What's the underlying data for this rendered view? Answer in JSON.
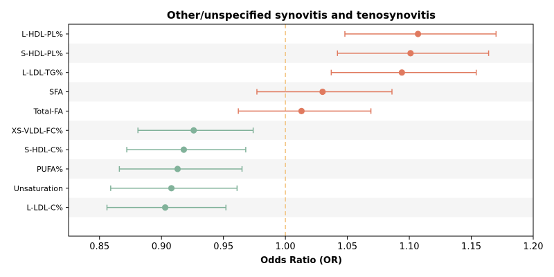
{
  "chart_data": {
    "type": "forest",
    "title": "Other/unspecified synovitis and tenosynovitis",
    "xlabel": "Odds Ratio (OR)",
    "ylabel": "",
    "xlim": [
      0.825,
      1.2
    ],
    "xticks": [
      "0.85",
      "0.90",
      "0.95",
      "1.00",
      "1.05",
      "1.10",
      "1.15",
      "1.20"
    ],
    "xtick_values": [
      0.85,
      0.9,
      0.95,
      1.0,
      1.05,
      1.1,
      1.15,
      1.2
    ],
    "reference_line": 1.0,
    "reference_color": "#f2c27e",
    "row_shading": "#f5f5f5",
    "grid": false,
    "colors": {
      "positive": "#e07a5f",
      "negative": "#81b29a"
    },
    "categories": [
      "L-HDL-PL%",
      "S-HDL-PL%",
      "L-LDL-TG%",
      "SFA",
      "Total-FA",
      "XS-VLDL-FC%",
      "S-HDL-C%",
      "PUFA%",
      "Unsaturation",
      "L-LDL-C%"
    ],
    "or": [
      1.107,
      1.101,
      1.094,
      1.03,
      1.013,
      0.926,
      0.918,
      0.913,
      0.908,
      0.903
    ],
    "ci_low": [
      1.048,
      1.042,
      1.037,
      0.977,
      0.962,
      0.881,
      0.872,
      0.866,
      0.859,
      0.856
    ],
    "ci_high": [
      1.17,
      1.164,
      1.154,
      1.086,
      1.069,
      0.974,
      0.968,
      0.965,
      0.961,
      0.952
    ]
  }
}
